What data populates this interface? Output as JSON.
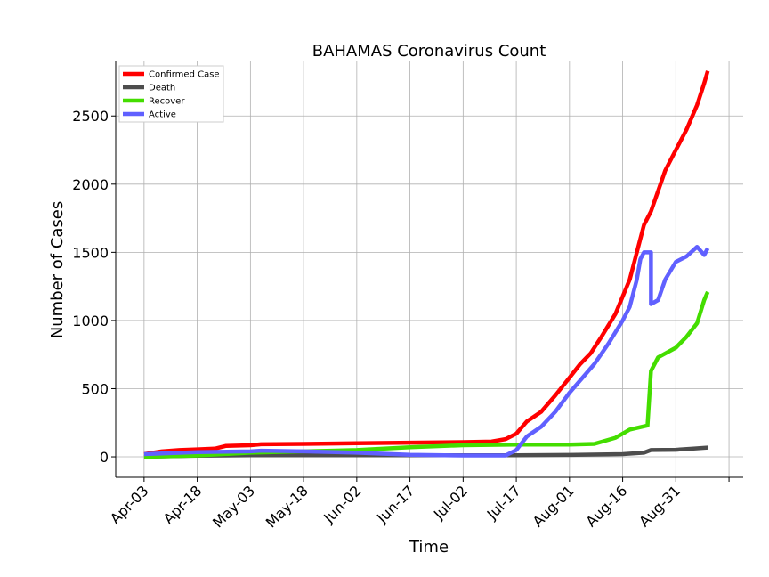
{
  "chart_data": {
    "type": "line",
    "title": "BAHAMAS Coronavirus Count",
    "xlabel": "Time",
    "ylabel": "Number of Cases",
    "x_ticks": [
      "Apr-03",
      "Apr-18",
      "May-03",
      "May-18",
      "Jun-02",
      "Jun-17",
      "Jul-02",
      "Jul-17",
      "Aug-01",
      "Aug-16",
      "Aug-31"
    ],
    "y_ticks": [
      0,
      500,
      1000,
      1500,
      2000,
      2500
    ],
    "xlim": [
      "2020-03-26",
      "2020-09-19"
    ],
    "ylim": [
      -150,
      2900
    ],
    "grid": true,
    "legend_position": "top-left",
    "series": [
      {
        "name": "Confirmed Case",
        "color": "#ff0000",
        "points": [
          [
            "2020-04-03",
            20
          ],
          [
            "2020-04-08",
            40
          ],
          [
            "2020-04-13",
            50
          ],
          [
            "2020-04-18",
            55
          ],
          [
            "2020-04-23",
            60
          ],
          [
            "2020-04-26",
            80
          ],
          [
            "2020-05-03",
            85
          ],
          [
            "2020-05-06",
            92
          ],
          [
            "2020-05-18",
            95
          ],
          [
            "2020-06-02",
            100
          ],
          [
            "2020-06-17",
            104
          ],
          [
            "2020-07-02",
            108
          ],
          [
            "2020-07-10",
            112
          ],
          [
            "2020-07-14",
            130
          ],
          [
            "2020-07-17",
            170
          ],
          [
            "2020-07-20",
            260
          ],
          [
            "2020-07-24",
            330
          ],
          [
            "2020-07-28",
            450
          ],
          [
            "2020-08-01",
            580
          ],
          [
            "2020-08-04",
            680
          ],
          [
            "2020-08-07",
            760
          ],
          [
            "2020-08-10",
            880
          ],
          [
            "2020-08-14",
            1050
          ],
          [
            "2020-08-18",
            1300
          ],
          [
            "2020-08-20",
            1500
          ],
          [
            "2020-08-22",
            1700
          ],
          [
            "2020-08-24",
            1800
          ],
          [
            "2020-08-26",
            1950
          ],
          [
            "2020-08-28",
            2100
          ],
          [
            "2020-08-31",
            2250
          ],
          [
            "2020-09-03",
            2400
          ],
          [
            "2020-09-06",
            2580
          ],
          [
            "2020-09-08",
            2740
          ],
          [
            "2020-09-09",
            2830
          ]
        ]
      },
      {
        "name": "Death",
        "color": "#4d4d4d",
        "points": [
          [
            "2020-04-03",
            1
          ],
          [
            "2020-04-18",
            9
          ],
          [
            "2020-05-03",
            11
          ],
          [
            "2020-06-02",
            11
          ],
          [
            "2020-07-02",
            11
          ],
          [
            "2020-07-17",
            11
          ],
          [
            "2020-08-01",
            14
          ],
          [
            "2020-08-16",
            20
          ],
          [
            "2020-08-22",
            30
          ],
          [
            "2020-08-24",
            50
          ],
          [
            "2020-08-31",
            52
          ],
          [
            "2020-09-05",
            60
          ],
          [
            "2020-09-09",
            68
          ]
        ]
      },
      {
        "name": "Recover",
        "color": "#44dd00",
        "points": [
          [
            "2020-04-03",
            0
          ],
          [
            "2020-04-18",
            10
          ],
          [
            "2020-05-03",
            30
          ],
          [
            "2020-05-18",
            40
          ],
          [
            "2020-06-02",
            50
          ],
          [
            "2020-06-17",
            70
          ],
          [
            "2020-07-02",
            85
          ],
          [
            "2020-07-17",
            90
          ],
          [
            "2020-08-01",
            90
          ],
          [
            "2020-08-08",
            95
          ],
          [
            "2020-08-14",
            140
          ],
          [
            "2020-08-18",
            200
          ],
          [
            "2020-08-23",
            230
          ],
          [
            "2020-08-24",
            630
          ],
          [
            "2020-08-26",
            730
          ],
          [
            "2020-08-31",
            800
          ],
          [
            "2020-09-03",
            880
          ],
          [
            "2020-09-06",
            980
          ],
          [
            "2020-09-08",
            1150
          ],
          [
            "2020-09-09",
            1210
          ]
        ]
      },
      {
        "name": "Active",
        "color": "#6060ff",
        "points": [
          [
            "2020-04-03",
            20
          ],
          [
            "2020-04-18",
            35
          ],
          [
            "2020-05-03",
            40
          ],
          [
            "2020-05-06",
            45
          ],
          [
            "2020-05-18",
            40
          ],
          [
            "2020-06-02",
            30
          ],
          [
            "2020-06-17",
            15
          ],
          [
            "2020-07-02",
            10
          ],
          [
            "2020-07-14",
            10
          ],
          [
            "2020-07-17",
            50
          ],
          [
            "2020-07-20",
            150
          ],
          [
            "2020-07-24",
            220
          ],
          [
            "2020-07-28",
            330
          ],
          [
            "2020-08-01",
            470
          ],
          [
            "2020-08-04",
            560
          ],
          [
            "2020-08-08",
            680
          ],
          [
            "2020-08-12",
            830
          ],
          [
            "2020-08-16",
            1000
          ],
          [
            "2020-08-18",
            1100
          ],
          [
            "2020-08-20",
            1300
          ],
          [
            "2020-08-21",
            1450
          ],
          [
            "2020-08-22",
            1500
          ],
          [
            "2020-08-24",
            1500
          ],
          [
            "2020-08-24",
            1120
          ],
          [
            "2020-08-26",
            1150
          ],
          [
            "2020-08-28",
            1300
          ],
          [
            "2020-08-31",
            1430
          ],
          [
            "2020-09-03",
            1470
          ],
          [
            "2020-09-06",
            1540
          ],
          [
            "2020-09-08",
            1480
          ],
          [
            "2020-09-09",
            1530
          ]
        ]
      }
    ]
  }
}
